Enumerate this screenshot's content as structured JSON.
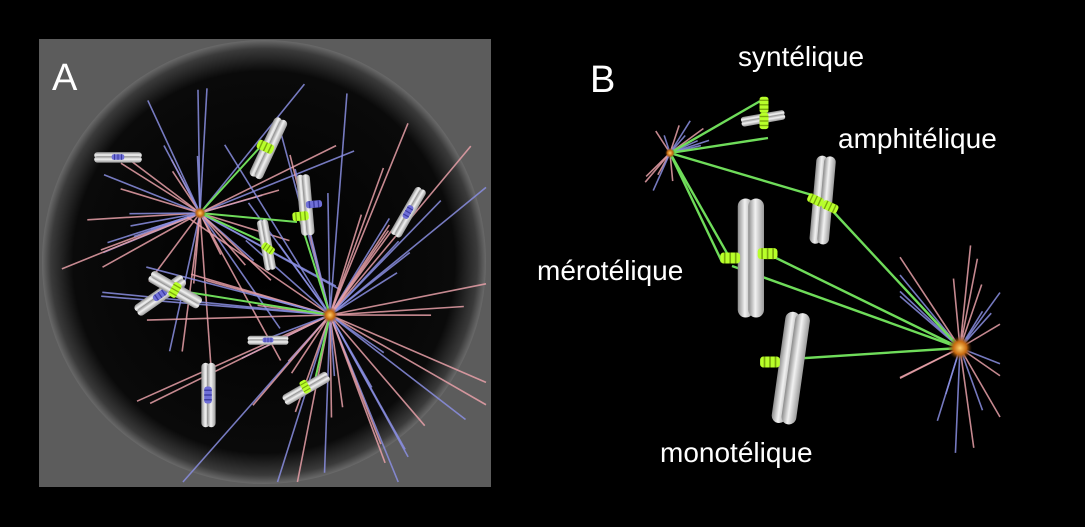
{
  "panels": [
    {
      "letter": "A"
    },
    {
      "letter": "B"
    }
  ],
  "attachment_types": [
    {
      "id": "syntelic",
      "label": "syntélique"
    },
    {
      "id": "amphitelic",
      "label": "amphitélique"
    },
    {
      "id": "merotelic",
      "label": "mérotélique"
    },
    {
      "id": "monotelic",
      "label": "monotélique"
    }
  ],
  "colors": {
    "background": "#000000",
    "cell_panel": "#5c5c5c",
    "chromosome": "#d9d9d9",
    "kinetochore_attached": "#b8ff2a",
    "kinetochore_free": "#6f6fd8",
    "microtubule_attached": "#6fdc5a",
    "microtubule_pink": "#e8a0a8",
    "microtubule_blue": "#8a8ee0",
    "centrosome": "#c86a10"
  },
  "icons": {
    "chromosome": "chromosome-icon",
    "kinetochore": "kinetochore-icon",
    "centrosome": "centrosome-icon"
  }
}
